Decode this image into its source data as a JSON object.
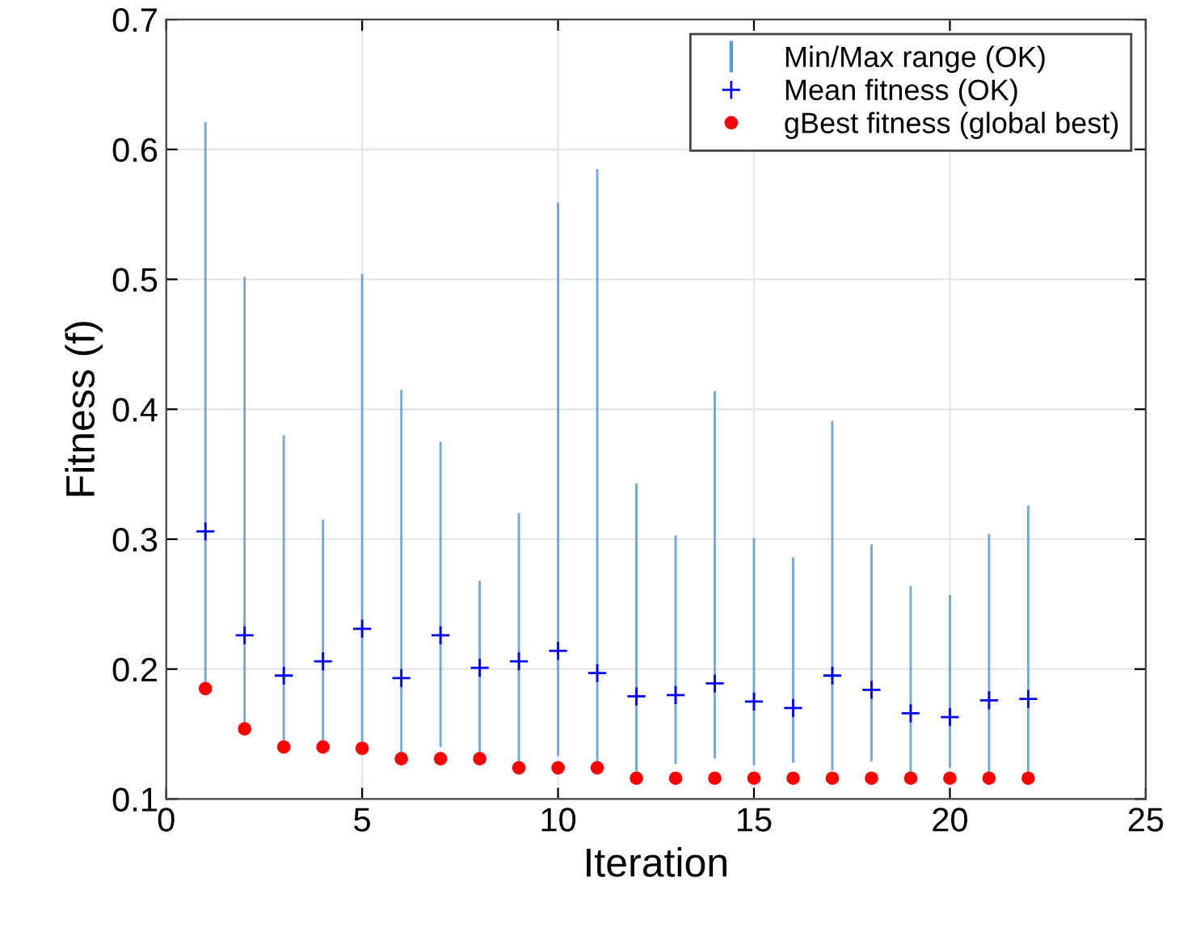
{
  "chart_data": {
    "type": "scatter",
    "xlabel": "Iteration",
    "ylabel": "Fitness (f)",
    "x": [
      1,
      2,
      3,
      4,
      5,
      6,
      7,
      8,
      9,
      10,
      11,
      12,
      13,
      14,
      15,
      16,
      17,
      18,
      19,
      20,
      21,
      22
    ],
    "series": [
      {
        "name": "Min/Max range (OK)",
        "type": "bar",
        "color": "#5b9bd5",
        "base": [
          0.185,
          0.154,
          0.14,
          0.144,
          0.139,
          0.131,
          0.14,
          0.134,
          0.124,
          0.133,
          0.124,
          0.116,
          0.127,
          0.131,
          0.126,
          0.128,
          0.122,
          0.129,
          0.117,
          0.124,
          0.118,
          0.118
        ],
        "values": [
          0.436,
          0.348,
          0.24,
          0.171,
          0.365,
          0.284,
          0.235,
          0.134,
          0.196,
          0.426,
          0.461,
          0.227,
          0.176,
          0.283,
          0.175,
          0.158,
          0.269,
          0.167,
          0.147,
          0.133,
          0.186,
          0.208
        ]
      },
      {
        "name": "Mean fitness (OK)",
        "color": "#0000ff",
        "marker": "cross",
        "values": [
          0.306,
          0.226,
          0.195,
          0.206,
          0.231,
          0.193,
          0.226,
          0.201,
          0.206,
          0.214,
          0.197,
          0.179,
          0.18,
          0.189,
          0.175,
          0.17,
          0.195,
          0.184,
          0.166,
          0.163,
          0.176,
          0.177
        ]
      },
      {
        "name": "gBest fitness (global best)",
        "color": "#ff0000",
        "marker": "circle",
        "values": [
          0.185,
          0.154,
          0.14,
          0.14,
          0.139,
          0.131,
          0.131,
          0.131,
          0.124,
          0.124,
          0.124,
          0.116,
          0.116,
          0.116,
          0.116,
          0.116,
          0.116,
          0.116,
          0.116,
          0.116,
          0.116,
          0.116
        ]
      }
    ],
    "xlim": [
      0,
      25
    ],
    "xticks": [
      0,
      5,
      10,
      15,
      20,
      25
    ],
    "ylim": [
      0.1,
      0.7
    ],
    "yticks": [
      0.1,
      0.2,
      0.3,
      0.4,
      0.5,
      0.6,
      0.7
    ],
    "grid": true,
    "legend": "top right"
  }
}
